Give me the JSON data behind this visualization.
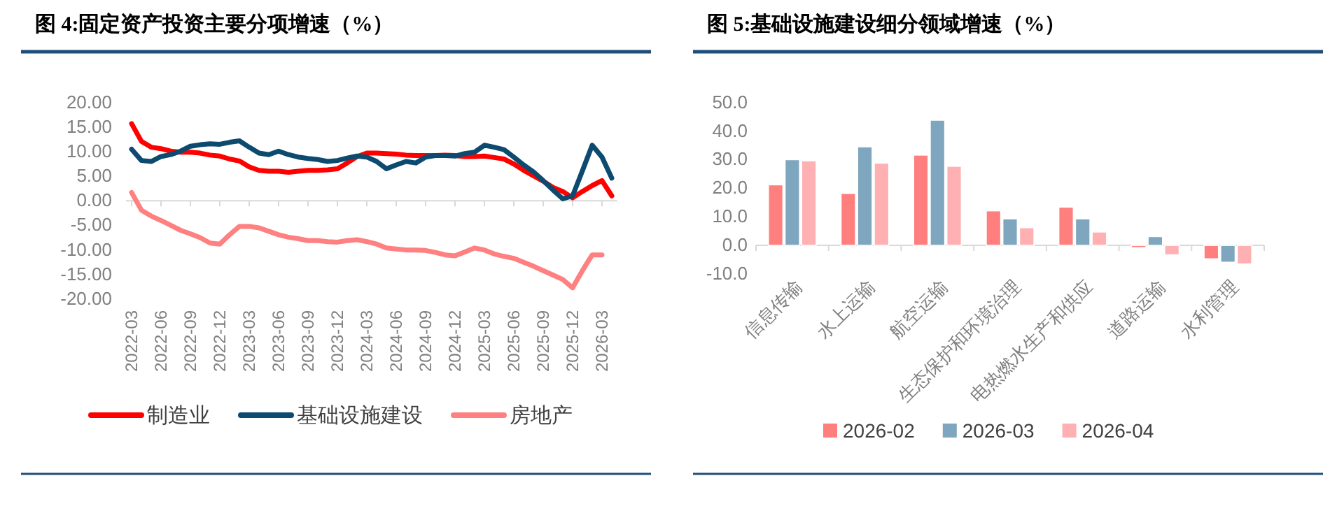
{
  "chart_data": [
    {
      "type": "line",
      "title": "图 4:固定资产投资主要分项增速（%）",
      "legend": "bottom",
      "categories": [
        "2022-03",
        null,
        null,
        "2022-06",
        null,
        null,
        "2022-09",
        null,
        null,
        "2022-12",
        null,
        null,
        "2023-03",
        null,
        null,
        "2023-06",
        null,
        null,
        "2023-09",
        null,
        null,
        "2023-12",
        null,
        null,
        "2024-03",
        null,
        null,
        "2024-06",
        null,
        null,
        "2024-09",
        null,
        null,
        "2024-12",
        null,
        null,
        "2025-03",
        null,
        null,
        "2025-06",
        null,
        null,
        "2025-09",
        null,
        null,
        "2025-12",
        null,
        null,
        "2026-03",
        null
      ],
      "ylim": [
        -20,
        20
      ],
      "yticks": [
        {
          "value": -20,
          "label": "-20.00"
        },
        {
          "value": -15,
          "label": "-15.00"
        },
        {
          "value": -10,
          "label": "-10.00"
        },
        {
          "value": -5,
          "label": "-5.00"
        },
        {
          "value": 0,
          "label": "0.00"
        },
        {
          "value": 5,
          "label": "5.00"
        },
        {
          "value": 10,
          "label": "10.00"
        },
        {
          "value": 15,
          "label": "15.00"
        },
        {
          "value": 20,
          "label": "20.00"
        }
      ],
      "series": [
        {
          "name": "制造业",
          "color": "#ff0000",
          "values": [
            15.7,
            12.1,
            10.9,
            10.6,
            10.1,
            9.9,
            9.9,
            9.7,
            9.3,
            9.1,
            8.5,
            8.1,
            6.9,
            6.2,
            6.0,
            6.0,
            5.8,
            6.0,
            6.2,
            6.2,
            6.3,
            6.5,
            7.7,
            9.0,
            9.7,
            9.7,
            9.6,
            9.5,
            9.3,
            9.2,
            9.2,
            9.2,
            9.3,
            9.2,
            9.0,
            9.0,
            9.1,
            8.8,
            8.5,
            7.5,
            6.2,
            5.1,
            4.0,
            2.7,
            1.9,
            0.6,
            1.9,
            3.1,
            4.1,
            1.0
          ]
        },
        {
          "name": "基础设施建设",
          "color": "#0d4a70",
          "values": [
            10.5,
            8.2,
            8.0,
            9.0,
            9.4,
            10.1,
            11.1,
            11.4,
            11.6,
            11.5,
            11.9,
            12.2,
            10.9,
            9.7,
            9.4,
            10.1,
            9.4,
            8.9,
            8.6,
            8.4,
            8.0,
            8.2,
            8.7,
            9.1,
            8.9,
            8.0,
            6.5,
            7.3,
            8.0,
            7.7,
            8.9,
            9.2,
            9.2,
            9.1,
            9.6,
            9.9,
            11.3,
            10.9,
            10.4,
            8.9,
            7.3,
            5.9,
            4.1,
            2.2,
            0.4,
            1.0,
            6.1,
            11.3,
            8.9,
            4.6
          ]
        },
        {
          "name": "房地产",
          "color": "#ff8080",
          "values": [
            1.7,
            -1.9,
            -3.1,
            -4.0,
            -5.0,
            -6.0,
            -6.7,
            -7.5,
            -8.6,
            -8.8,
            -6.9,
            -5.2,
            -5.2,
            -5.5,
            -6.2,
            -6.9,
            -7.4,
            -7.7,
            -8.1,
            -8.1,
            -8.3,
            -8.4,
            -8.1,
            -7.9,
            -8.3,
            -8.8,
            -9.6,
            -9.8,
            -10.0,
            -10.0,
            -10.1,
            -10.5,
            -11.0,
            -11.2,
            -10.4,
            -9.6,
            -10.0,
            -10.8,
            -11.3,
            -11.7,
            -12.5,
            -13.3,
            -14.2,
            -15.1,
            -16.0,
            -17.7,
            -14.2,
            -11.0,
            -11.0,
            null
          ]
        }
      ]
    },
    {
      "type": "bar",
      "title": "图 5:基础设施建设细分领域增速（%）",
      "legend": "bottom",
      "categories": [
        "信息传输",
        "水上运输",
        "航空运输",
        "生态保护和环境治理",
        "电热燃水生产和供应",
        "道路运输",
        "水利管理"
      ],
      "ylim": [
        -10,
        50
      ],
      "yticks": [
        {
          "value": -10,
          "label": "-10.0"
        },
        {
          "value": 0,
          "label": "0.0"
        },
        {
          "value": 10,
          "label": "10.0"
        },
        {
          "value": 20,
          "label": "20.0"
        },
        {
          "value": 30,
          "label": "30.0"
        },
        {
          "value": 40,
          "label": "40.0"
        },
        {
          "value": 50,
          "label": "50.0"
        }
      ],
      "series": [
        {
          "name": "2026-02",
          "color": "#ff7f7f",
          "values": [
            21.2,
            18.2,
            31.6,
            12.1,
            13.4,
            -0.8,
            -4.7
          ]
        },
        {
          "name": "2026-03",
          "color": "#7fa6bf",
          "values": [
            30.0,
            34.5,
            43.8,
            9.3,
            9.3,
            3.1,
            -5.9
          ]
        },
        {
          "name": "2026-04",
          "color": "#ffb0b3",
          "values": [
            29.6,
            28.8,
            27.7,
            6.2,
            4.7,
            -3.3,
            -6.5
          ]
        }
      ]
    }
  ]
}
